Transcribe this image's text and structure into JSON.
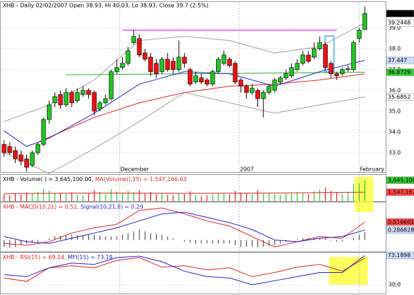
{
  "chart_data": [
    {
      "type": "candlestick",
      "title": "XHB - Daily 02/02/2007 Open 38.93, Hi 40.03, Lo 38.93, Close 39.7 (2.5%)",
      "xlim": [
        -0.6,
        67.7
      ],
      "xticks": [
        {
          "value": 20.5,
          "label": "December"
        },
        {
          "value": 41.7,
          "label": "2007"
        },
        {
          "value": 63,
          "label": "February"
        }
      ],
      "ylim": [
        32.07,
        40.25
      ],
      "yticks": [
        {
          "value": 33,
          "label": "33.0"
        },
        {
          "value": 34,
          "label": "34.0"
        },
        {
          "value": 35,
          "label": "35.0"
        },
        {
          "value": 36,
          "label": "36.0"
        },
        {
          "value": 37,
          "label": "37.0"
        },
        {
          "value": 38,
          "label": "38.0"
        },
        {
          "value": 39,
          "label": "39.0"
        }
      ],
      "grid": true,
      "up_color": "#22c522",
      "down_color": "#ee1111",
      "open": [
        33.4,
        33.3,
        33.1,
        32.9,
        32.7,
        32.4,
        33.0,
        33.4,
        34.6,
        35.4,
        35.8,
        35.3,
        35.9,
        35.5,
        35.8,
        36.0,
        35.9,
        35.1,
        35.4,
        35.6,
        36.9,
        37.1,
        37.3,
        38.3,
        38.5,
        37.8,
        37.6,
        37.3,
        36.9,
        37.5,
        37.4,
        37.0,
        37.6,
        37.0,
        36.4,
        36.6,
        36.5,
        36.3,
        36.9,
        37.3,
        37.5,
        37.3,
        36.5,
        36.2,
        35.9,
        36.0,
        35.6,
        35.9,
        36.0,
        36.4,
        36.6,
        36.7,
        37.0,
        37.3,
        37.7,
        37.6,
        38.0,
        38.2,
        37.3,
        36.8,
        36.8,
        37.0,
        37.0,
        38.5,
        38.93
      ],
      "high": [
        33.6,
        33.5,
        33.3,
        33.1,
        32.9,
        33.1,
        33.5,
        34.7,
        35.5,
        35.9,
        36.0,
        36.1,
        36.0,
        36.1,
        36.2,
        36.1,
        36.0,
        35.5,
        35.8,
        37.0,
        37.5,
        37.6,
        38.1,
        38.9,
        38.7,
        38.0,
        37.8,
        37.5,
        37.6,
        37.8,
        37.6,
        38.4,
        37.8,
        37.1,
        36.9,
        36.8,
        36.6,
        37.0,
        37.6,
        37.9,
        37.6,
        37.4,
        36.6,
        36.3,
        36.3,
        36.1,
        36.0,
        36.3,
        36.6,
        36.7,
        37.0,
        37.3,
        37.5,
        37.9,
        37.9,
        38.3,
        38.6,
        38.3,
        37.4,
        36.9,
        37.1,
        37.2,
        38.4,
        39.0,
        40.03
      ],
      "low": [
        32.8,
        32.9,
        32.5,
        32.4,
        32.1,
        32.3,
        32.9,
        33.3,
        34.4,
        35.2,
        35.1,
        35.2,
        35.2,
        35.4,
        35.7,
        35.6,
        34.8,
        35.0,
        35.3,
        35.5,
        36.8,
        37.0,
        37.2,
        38.2,
        37.6,
        37.4,
        36.7,
        36.6,
        36.8,
        36.9,
        36.8,
        36.9,
        37.1,
        36.2,
        36.3,
        36.3,
        36.2,
        36.2,
        36.8,
        37.2,
        37.1,
        36.3,
        35.9,
        35.6,
        35.8,
        35.2,
        34.7,
        35.8,
        35.9,
        36.3,
        36.5,
        36.6,
        36.9,
        37.2,
        37.3,
        37.5,
        37.9,
        37.0,
        36.6,
        36.5,
        36.7,
        36.9,
        36.9,
        38.3,
        38.93
      ],
      "close": [
        33.0,
        33.0,
        32.7,
        32.6,
        32.3,
        33.0,
        33.4,
        34.6,
        35.3,
        35.7,
        35.3,
        35.9,
        35.4,
        35.9,
        36.0,
        35.8,
        35.0,
        35.4,
        35.6,
        36.9,
        37.1,
        37.3,
        37.9,
        38.6,
        37.7,
        37.5,
        36.9,
        36.8,
        37.5,
        37.0,
        37.0,
        37.6,
        37.3,
        36.3,
        36.7,
        36.4,
        36.3,
        36.9,
        37.5,
        37.7,
        37.2,
        36.4,
        36.2,
        35.9,
        36.1,
        35.6,
        35.9,
        36.2,
        36.5,
        36.6,
        36.8,
        37.1,
        37.3,
        37.7,
        37.4,
        38.0,
        38.3,
        37.1,
        36.8,
        36.7,
        37.0,
        37.05,
        38.3,
        38.9,
        39.7
      ],
      "close_label": "39.7",
      "overlays": [
        {
          "color": "#a0a0a0",
          "x": [
            0,
            8,
            16,
            24,
            32,
            40,
            48,
            56,
            64
          ],
          "values": [
            34.5,
            35.3,
            36.5,
            38.4,
            38.6,
            38.4,
            37.8,
            38.1,
            39.2448
          ],
          "last_label": "39.2448",
          "label_color": "#ffffff"
        },
        {
          "color": "#a0a0a0",
          "x": [
            0,
            8,
            16,
            24,
            32,
            40,
            48,
            56,
            64
          ],
          "values": [
            33.0,
            32.0,
            33.2,
            34.5,
            35.9,
            35.4,
            34.9,
            35.3,
            35.6852
          ],
          "last_label": "35.6852",
          "label_color": "#ffffff"
        },
        {
          "color": "#22aa22",
          "x": [
            11,
            64
          ],
          "values": [
            36.75,
            36.8729
          ],
          "last_label": "36.8729",
          "label_color": "#33cc33"
        },
        {
          "color": "#dd2222",
          "x": [
            6,
            16,
            24,
            32,
            40,
            48,
            56,
            64
          ],
          "values": [
            33.5,
            34.7,
            35.4,
            35.9,
            36.2,
            36.3,
            36.5,
            36.8
          ]
        },
        {
          "color": "#2222cc",
          "x": [
            0,
            4,
            8,
            16,
            24,
            32,
            40,
            48,
            56,
            64
          ],
          "values": [
            34.05,
            33.3,
            33.7,
            34.9,
            36.3,
            36.9,
            36.8,
            36.2,
            36.9,
            37.447
          ],
          "last_label": "37.447",
          "label_color": "#ccddff"
        },
        {
          "color": "#e000e0",
          "x": [
            21,
            59
          ],
          "values": [
            38.9,
            38.9
          ]
        }
      ]
    },
    {
      "type": "volume",
      "xlim": [
        -0.6,
        67.7
      ],
      "ylim": [
        0,
        4600000
      ],
      "series": [
        {
          "name": "XHB - Volume( ) = 3,645,100.00,",
          "color": "#008800",
          "values": [
            1200000,
            1000000,
            1400000,
            1100000,
            1500000,
            1300000,
            1600000,
            2200000,
            1800000,
            1400000,
            1300000,
            1200000,
            1500000,
            1100000,
            1000000,
            1300000,
            1900000,
            1600000,
            1200000,
            2100000,
            1700000,
            1400000,
            1800000,
            1500000,
            1900000,
            1300000,
            1600000,
            1200000,
            1400000,
            1100000,
            1000000,
            1300000,
            1200000,
            1700000,
            1100000,
            900000,
            1000000,
            1200000,
            1400000,
            1300000,
            1100000,
            1800000,
            1500000,
            1400000,
            1200000,
            1900000,
            1300000,
            1400000,
            1200000,
            1100000,
            1300000,
            1500000,
            1600000,
            1400000,
            1200000,
            1700000,
            2000000,
            2400000,
            1800000,
            1500000,
            1300000,
            1600000,
            2900000,
            3100000,
            3645100
          ],
          "last_label": "3,645,100",
          "label_color": "#33cc33"
        },
        {
          "name": "MA(Volume(),15) = 1,547,166.63",
          "color": "#dd2222",
          "x": [
            0,
            16,
            32,
            48,
            64
          ],
          "values": [
            1300000,
            1400000,
            1350000,
            1400000,
            1547166.63
          ],
          "last_label": "1,547,167",
          "label_color": "#ff4444"
        }
      ]
    },
    {
      "type": "macd",
      "xlim": [
        -0.6,
        67.7
      ],
      "ylim": [
        -0.33,
        1.08
      ],
      "histogram": [
        -0.2,
        -0.22,
        -0.2,
        -0.15,
        -0.1,
        -0.08,
        -0.05,
        0.0,
        0.05,
        0.1,
        0.12,
        0.15,
        0.15,
        0.15,
        0.14,
        0.15,
        0.15,
        0.12,
        0.1,
        0.1,
        0.1,
        0.15,
        0.2,
        0.25,
        0.3,
        0.25,
        0.2,
        0.17,
        0.15,
        0.1,
        0.05,
        0.0,
        -0.05,
        -0.08,
        -0.1,
        -0.1,
        -0.1,
        -0.1,
        -0.1,
        -0.1,
        -0.1,
        -0.15,
        -0.2,
        -0.2,
        -0.2,
        -0.2,
        -0.2,
        -0.18,
        -0.15,
        -0.1,
        -0.05,
        0.0,
        0.02,
        0.05,
        0.06,
        0.05,
        0.05,
        0.04,
        -0.02,
        -0.05,
        -0.05,
        0.0,
        0.05,
        0.15,
        0.23
      ],
      "series": [
        {
          "name": "XHB - MACD(10,21) = 0.52,",
          "color": "#dd2222",
          "x": [
            0,
            4,
            8,
            12,
            16,
            20,
            24,
            28,
            32,
            36,
            40,
            44,
            48,
            52,
            56,
            60,
            64
          ],
          "values": [
            -0.1,
            -0.15,
            -0.05,
            0.2,
            0.35,
            0.45,
            0.85,
            0.92,
            0.75,
            0.55,
            0.4,
            0.1,
            -0.2,
            -0.05,
            0.1,
            0.05,
            0.516601
          ],
          "last_label": "0.516601",
          "label_color": "#ff4444"
        },
        {
          "name": "Signal(10,21,8) = 0.29",
          "color": "#2222cc",
          "x": [
            0,
            4,
            8,
            12,
            16,
            20,
            24,
            28,
            32,
            36,
            40,
            44,
            48,
            52,
            56,
            60,
            64
          ],
          "values": [
            0.1,
            -0.05,
            -0.1,
            0.05,
            0.2,
            0.35,
            0.55,
            0.75,
            0.8,
            0.65,
            0.5,
            0.3,
            0.0,
            -0.05,
            0.05,
            0.1,
            0.286828
          ],
          "last_label": "0.286828",
          "label_color": "#ccddff"
        }
      ]
    },
    {
      "type": "line",
      "xlim": [
        -0.6,
        67.7
      ],
      "ylim": [
        17,
        77
      ],
      "yticks": [
        {
          "value": 30,
          "label": "30.0"
        }
      ],
      "grid": true,
      "series": [
        {
          "name": "XHB - RSI(15) = 69.14,",
          "color": "#dd2222",
          "x": [
            0,
            4,
            8,
            12,
            16,
            20,
            24,
            28,
            32,
            36,
            40,
            44,
            48,
            52,
            56,
            60,
            64
          ],
          "values": [
            40,
            35,
            55,
            58,
            55,
            66,
            70,
            56,
            58,
            52,
            55,
            42,
            48,
            56,
            60,
            50,
            69.14
          ]
        },
        {
          "name": "MFI(15) = 73.19",
          "color": "#2222cc",
          "x": [
            0,
            4,
            8,
            12,
            16,
            20,
            24,
            28,
            32,
            36,
            40,
            44,
            48,
            52,
            56,
            60,
            64
          ],
          "values": [
            45,
            42,
            55,
            62,
            60,
            70,
            72,
            64,
            50,
            42,
            40,
            30,
            36,
            42,
            48,
            48,
            73.1898
          ],
          "last_label": "73.1898",
          "label_color": "#ccddff"
        }
      ]
    }
  ]
}
